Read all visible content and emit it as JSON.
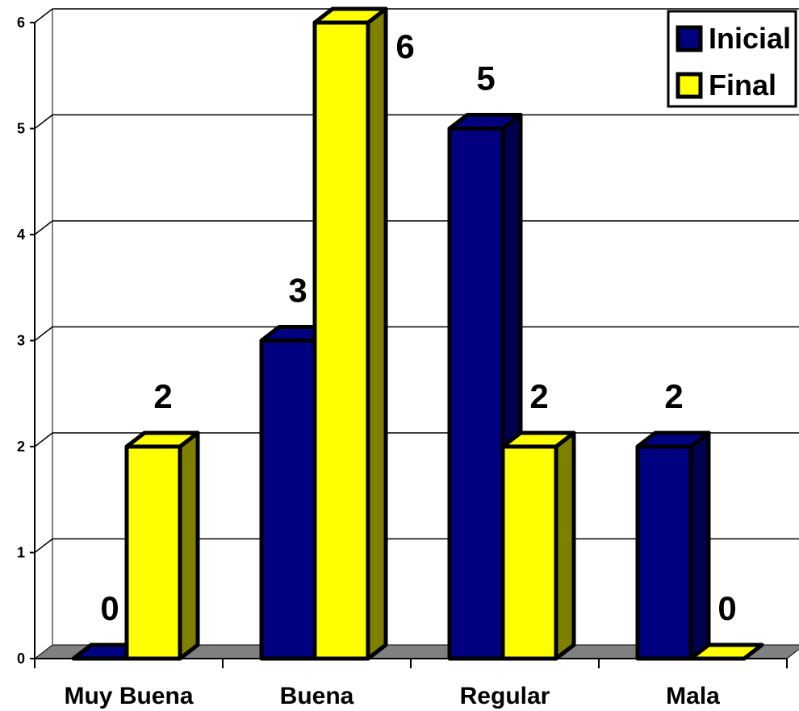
{
  "chart_data": {
    "type": "bar",
    "categories": [
      "Muy Buena",
      "Buena",
      "Regular",
      "Mala"
    ],
    "series": [
      {
        "name": "Inicial",
        "values": [
          0,
          3,
          5,
          2
        ]
      },
      {
        "name": "Final",
        "values": [
          2,
          6,
          2,
          0
        ]
      }
    ],
    "title": "",
    "xlabel": "",
    "ylabel": "",
    "ylim": [
      0,
      6
    ],
    "yticks": [
      0,
      1,
      2,
      3,
      4,
      5,
      6
    ],
    "grid": true,
    "legend_position": "top-right",
    "colors": {
      "Inicial": "#000080",
      "Inicial_side": "#000050",
      "Final": "#ffff00",
      "Final_side": "#808000",
      "floor": "#808080"
    }
  }
}
